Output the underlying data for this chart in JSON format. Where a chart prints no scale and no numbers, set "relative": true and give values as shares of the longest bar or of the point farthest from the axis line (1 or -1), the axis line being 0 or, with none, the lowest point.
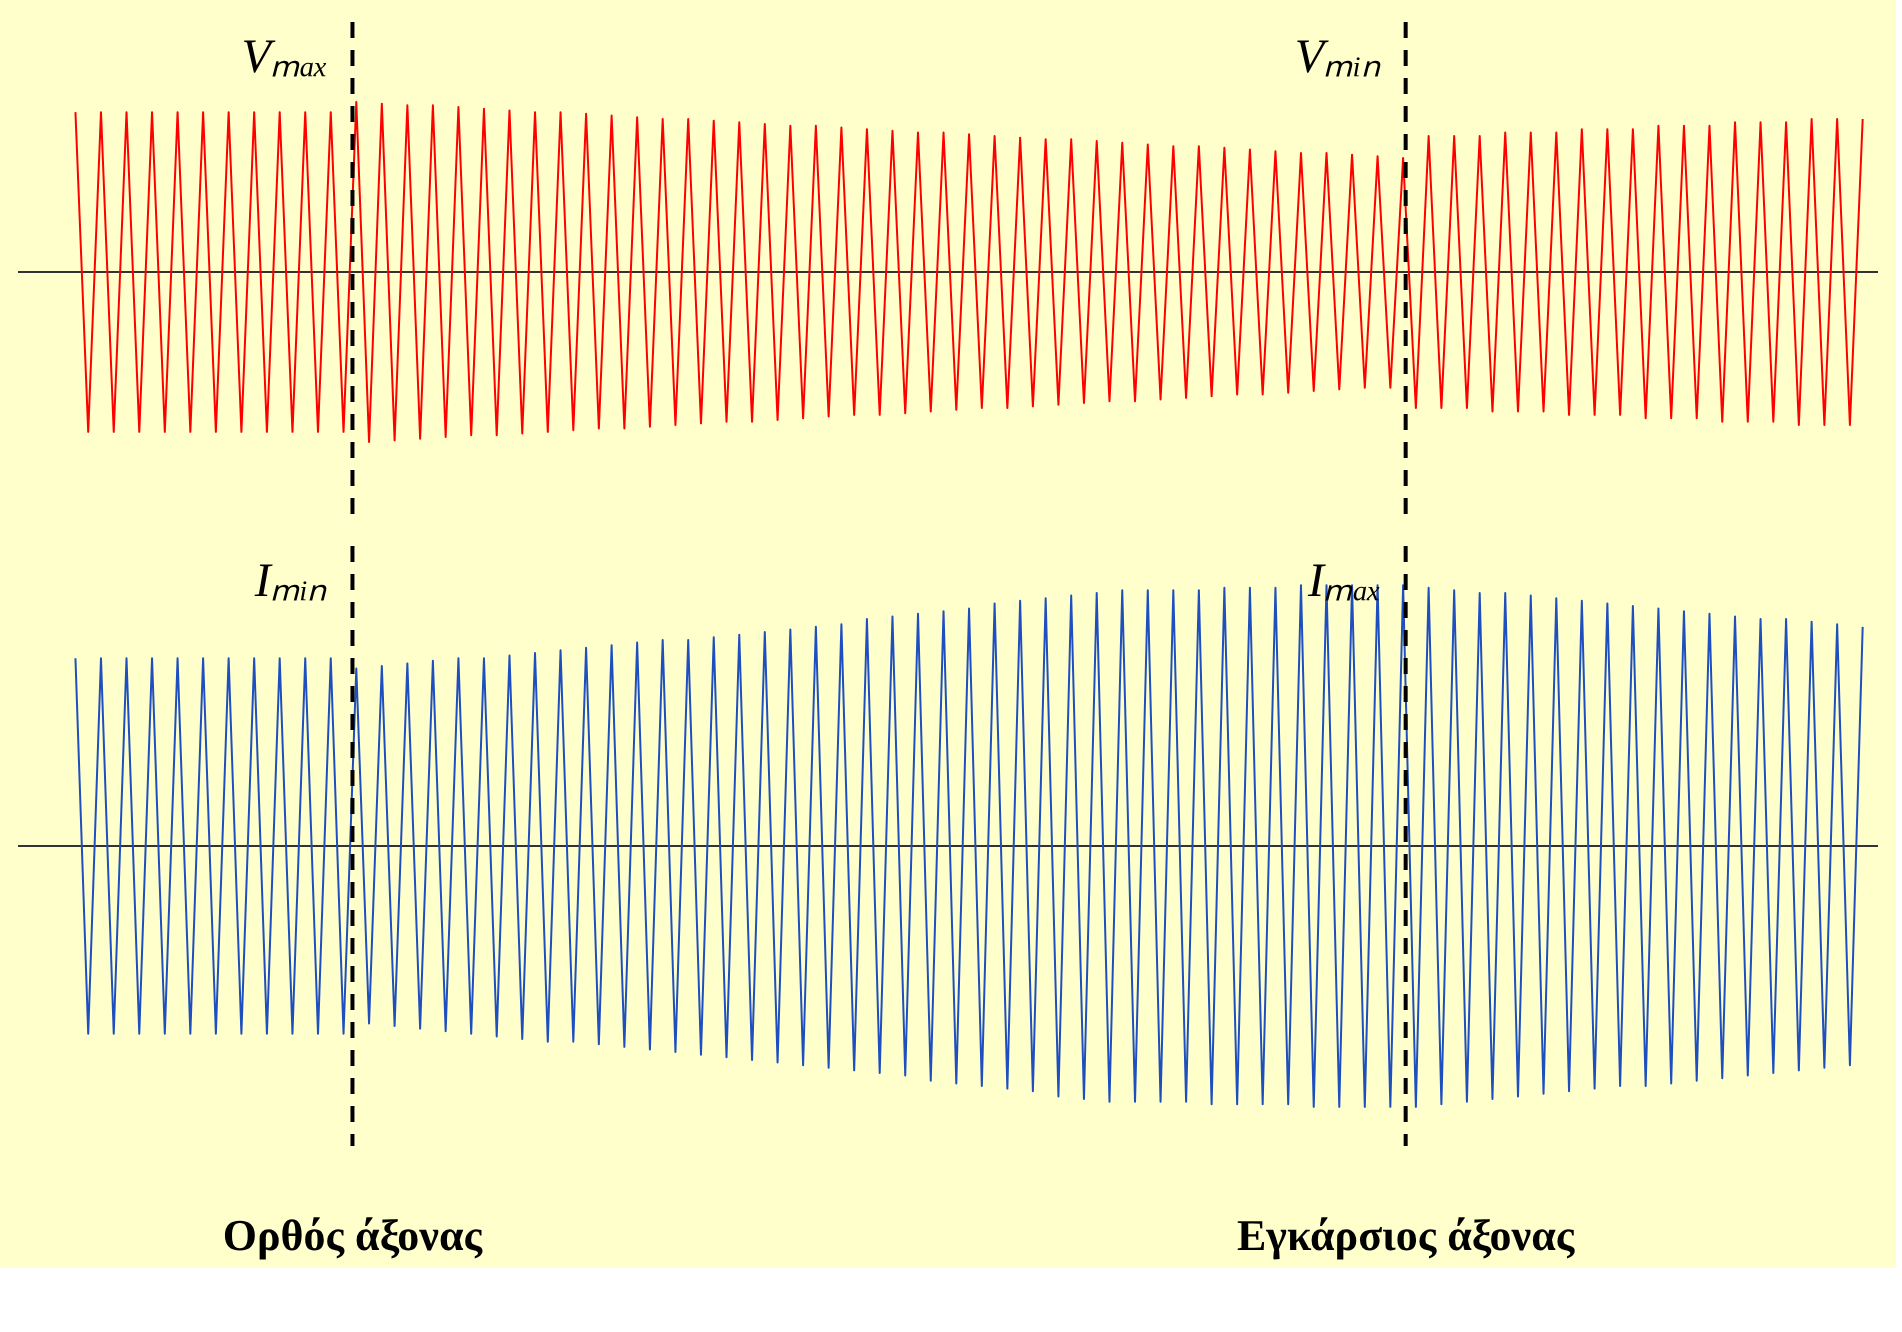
{
  "chart_data": [
    {
      "type": "line",
      "relative": true,
      "tick_labels": false,
      "categories": [
        null,
        null,
        null,
        null,
        null,
        null,
        null,
        null,
        null,
        null,
        null,
        null,
        null,
        null,
        null,
        null,
        null,
        null,
        null,
        null,
        null,
        null,
        null,
        null,
        null,
        null,
        null,
        null,
        null,
        null,
        null,
        null,
        null,
        null,
        null,
        null,
        null,
        null,
        null,
        null,
        null,
        null,
        null,
        null,
        null,
        null,
        null,
        null,
        null,
        null,
        null,
        null,
        null,
        null,
        null,
        null,
        null,
        null,
        null,
        null,
        null,
        null,
        null,
        null,
        null,
        null,
        null,
        null,
        null,
        null,
        null,
        null,
        null,
        null,
        null,
        null,
        null,
        null,
        null,
        null,
        null,
        null,
        null,
        null,
        null,
        null,
        null,
        null,
        null,
        null,
        null,
        null,
        null,
        null,
        null,
        null,
        null,
        null,
        null,
        null,
        null,
        null,
        null,
        null,
        null,
        null,
        null,
        null,
        null,
        null,
        null,
        null,
        null,
        null,
        null,
        null,
        null,
        null,
        null,
        null,
        null,
        null,
        null,
        null,
        null,
        null,
        null,
        null,
        null,
        null,
        null,
        null,
        null,
        null,
        null,
        null,
        null,
        null,
        null,
        null,
        null
      ],
      "series": [
        {
          "color": "#ff0000",
          "values": [
            0.94,
            -0.94,
            0.94,
            -0.94,
            0.94,
            -0.94,
            0.94,
            -0.94,
            0.94,
            -0.94,
            0.94,
            -0.94,
            0.94,
            -0.94,
            0.94,
            -0.94,
            0.94,
            -0.94,
            0.94,
            -0.94,
            0.94,
            -0.94,
            1.0,
            -1.0,
            0.99,
            -0.99,
            0.98,
            -0.98,
            0.98,
            -0.97,
            0.97,
            -0.96,
            0.96,
            -0.96,
            0.95,
            -0.95,
            0.94,
            -0.94,
            0.94,
            -0.93,
            0.93,
            -0.92,
            0.92,
            -0.92,
            0.91,
            -0.91,
            0.9,
            -0.9,
            0.9,
            -0.89,
            0.89,
            -0.88,
            0.88,
            -0.88,
            0.87,
            -0.87,
            0.86,
            -0.86,
            0.86,
            -0.85,
            0.85,
            -0.84,
            0.84,
            -0.84,
            0.83,
            -0.83,
            0.82,
            -0.82,
            0.82,
            -0.81,
            0.81,
            -0.8,
            0.8,
            -0.8,
            0.79,
            -0.79,
            0.78,
            -0.78,
            0.78,
            -0.77,
            0.77,
            -0.76,
            0.76,
            -0.76,
            0.75,
            -0.75,
            0.74,
            -0.74,
            0.74,
            -0.73,
            0.73,
            -0.72,
            0.72,
            -0.72,
            0.71,
            -0.71,
            0.7,
            -0.7,
            0.7,
            -0.69,
            0.69,
            -0.68,
            0.68,
            -0.68,
            0.67,
            -0.8,
            0.8,
            -0.8,
            0.8,
            -0.8,
            0.8,
            -0.82,
            0.82,
            -0.82,
            0.82,
            -0.82,
            0.82,
            -0.84,
            0.84,
            -0.84,
            0.84,
            -0.84,
            0.84,
            -0.86,
            0.86,
            -0.86,
            0.86,
            -0.86,
            0.86,
            -0.88,
            0.88,
            -0.88,
            0.88,
            -0.88,
            0.88,
            -0.9,
            0.9,
            -0.9,
            0.9,
            -0.9,
            0.9
          ]
        }
      ],
      "annotations": [
        "Vₘₐₓ",
        "Vₘᵢₙ"
      ]
    },
    {
      "type": "line",
      "relative": true,
      "tick_labels": false,
      "categories": [
        null,
        null,
        null,
        null,
        null,
        null,
        null,
        null,
        null,
        null,
        null,
        null,
        null,
        null,
        null,
        null,
        null,
        null,
        null,
        null,
        null,
        null,
        null,
        null,
        null,
        null,
        null,
        null,
        null,
        null,
        null,
        null,
        null,
        null,
        null,
        null,
        null,
        null,
        null,
        null,
        null,
        null,
        null,
        null,
        null,
        null,
        null,
        null,
        null,
        null,
        null,
        null,
        null,
        null,
        null,
        null,
        null,
        null,
        null,
        null,
        null,
        null,
        null,
        null,
        null,
        null,
        null,
        null,
        null,
        null,
        null,
        null,
        null,
        null,
        null,
        null,
        null,
        null,
        null,
        null,
        null,
        null,
        null,
        null,
        null,
        null,
        null,
        null,
        null,
        null,
        null,
        null,
        null,
        null,
        null,
        null,
        null,
        null,
        null,
        null,
        null,
        null,
        null,
        null,
        null,
        null,
        null,
        null,
        null,
        null,
        null,
        null,
        null,
        null,
        null,
        null,
        null,
        null,
        null,
        null,
        null,
        null,
        null,
        null,
        null,
        null,
        null,
        null,
        null,
        null,
        null,
        null,
        null,
        null,
        null,
        null,
        null,
        null,
        null,
        null,
        null
      ],
      "series": [
        {
          "color": "#1f4fbf",
          "values": [
            0.72,
            -0.72,
            0.72,
            -0.72,
            0.72,
            -0.72,
            0.72,
            -0.72,
            0.72,
            -0.72,
            0.72,
            -0.72,
            0.72,
            -0.72,
            0.72,
            -0.72,
            0.72,
            -0.72,
            0.72,
            -0.72,
            0.72,
            -0.72,
            0.68,
            -0.68,
            0.69,
            -0.69,
            0.7,
            -0.7,
            0.71,
            -0.71,
            0.72,
            -0.72,
            0.72,
            -0.73,
            0.73,
            -0.74,
            0.74,
            -0.75,
            0.75,
            -0.75,
            0.76,
            -0.76,
            0.77,
            -0.77,
            0.78,
            -0.78,
            0.79,
            -0.79,
            0.79,
            -0.8,
            0.8,
            -0.81,
            0.81,
            -0.82,
            0.82,
            -0.83,
            0.83,
            -0.84,
            0.84,
            -0.85,
            0.85,
            -0.86,
            0.87,
            -0.87,
            0.88,
            -0.88,
            0.89,
            -0.9,
            0.9,
            -0.91,
            0.91,
            -0.92,
            0.93,
            -0.93,
            0.94,
            -0.94,
            0.95,
            -0.96,
            0.96,
            -0.97,
            0.97,
            -0.98,
            0.98,
            -0.98,
            0.98,
            -0.98,
            0.98,
            -0.98,
            0.98,
            -0.99,
            0.99,
            -0.99,
            0.99,
            -0.99,
            0.99,
            -0.99,
            1.0,
            -1.0,
            1.0,
            -1.0,
            1.0,
            -1.0,
            1.0,
            -1.0,
            1.0,
            -1.0,
            0.99,
            -0.99,
            0.98,
            -0.98,
            0.97,
            -0.97,
            0.97,
            -0.96,
            0.96,
            -0.95,
            0.95,
            -0.94,
            0.94,
            -0.93,
            0.93,
            -0.92,
            0.92,
            -0.92,
            0.91,
            -0.91,
            0.9,
            -0.9,
            0.89,
            -0.89,
            0.88,
            -0.88,
            0.87,
            -0.87,
            0.87,
            -0.86,
            0.86,
            -0.85,
            0.85,
            -0.84,
            0.84
          ]
        }
      ],
      "annotations": [
        "Iₘᵢₙ",
        "Iₘₐₓ",
        "Ορθός άξονας",
        "Εγκάρσιος άξονας"
      ]
    }
  ]
}
